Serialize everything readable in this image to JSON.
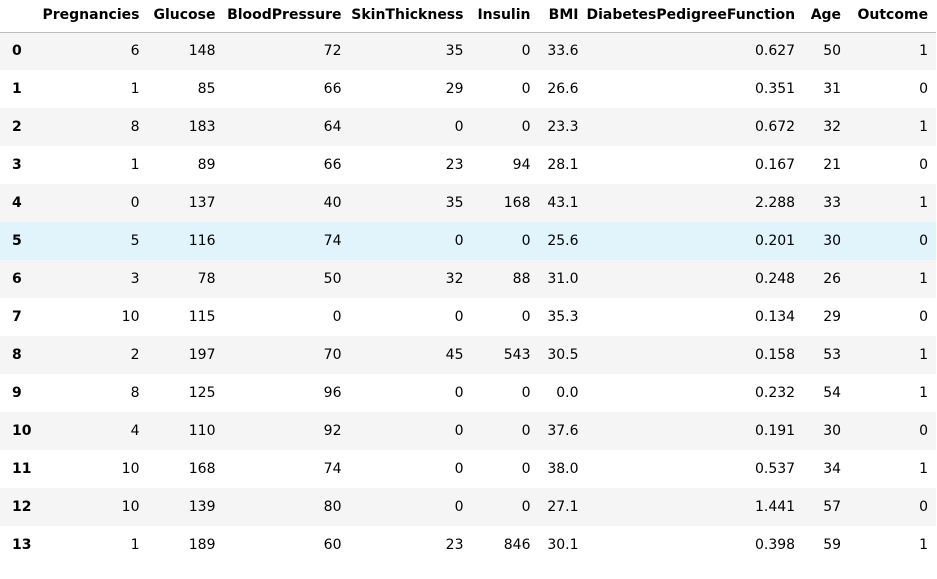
{
  "table": {
    "columns": [
      "Pregnancies",
      "Glucose",
      "BloodPressure",
      "SkinThickness",
      "Insulin",
      "BMI",
      "DiabetesPedigreeFunction",
      "Age",
      "Outcome"
    ],
    "rows": [
      {
        "index": "0",
        "cells": [
          "6",
          "148",
          "72",
          "35",
          "0",
          "33.6",
          "0.627",
          "50",
          "1"
        ]
      },
      {
        "index": "1",
        "cells": [
          "1",
          "85",
          "66",
          "29",
          "0",
          "26.6",
          "0.351",
          "31",
          "0"
        ]
      },
      {
        "index": "2",
        "cells": [
          "8",
          "183",
          "64",
          "0",
          "0",
          "23.3",
          "0.672",
          "32",
          "1"
        ]
      },
      {
        "index": "3",
        "cells": [
          "1",
          "89",
          "66",
          "23",
          "94",
          "28.1",
          "0.167",
          "21",
          "0"
        ]
      },
      {
        "index": "4",
        "cells": [
          "0",
          "137",
          "40",
          "35",
          "168",
          "43.1",
          "2.288",
          "33",
          "1"
        ]
      },
      {
        "index": "5",
        "cells": [
          "5",
          "116",
          "74",
          "0",
          "0",
          "25.6",
          "0.201",
          "30",
          "0"
        ]
      },
      {
        "index": "6",
        "cells": [
          "3",
          "78",
          "50",
          "32",
          "88",
          "31.0",
          "0.248",
          "26",
          "1"
        ]
      },
      {
        "index": "7",
        "cells": [
          "10",
          "115",
          "0",
          "0",
          "0",
          "35.3",
          "0.134",
          "29",
          "0"
        ]
      },
      {
        "index": "8",
        "cells": [
          "2",
          "197",
          "70",
          "45",
          "543",
          "30.5",
          "0.158",
          "53",
          "1"
        ]
      },
      {
        "index": "9",
        "cells": [
          "8",
          "125",
          "96",
          "0",
          "0",
          "0.0",
          "0.232",
          "54",
          "1"
        ]
      },
      {
        "index": "10",
        "cells": [
          "4",
          "110",
          "92",
          "0",
          "0",
          "37.6",
          "0.191",
          "30",
          "0"
        ]
      },
      {
        "index": "11",
        "cells": [
          "10",
          "168",
          "74",
          "0",
          "0",
          "38.0",
          "0.537",
          "34",
          "1"
        ]
      },
      {
        "index": "12",
        "cells": [
          "10",
          "139",
          "80",
          "0",
          "0",
          "27.1",
          "1.441",
          "57",
          "0"
        ]
      },
      {
        "index": "13",
        "cells": [
          "1",
          "189",
          "60",
          "23",
          "846",
          "30.1",
          "0.398",
          "59",
          "1"
        ]
      }
    ],
    "highlighted_row_index": 5
  },
  "colors": {
    "striped_row": "#f5f5f5",
    "highlighted_row": "#e1f3fb",
    "header_border": "#bdbdbd"
  }
}
